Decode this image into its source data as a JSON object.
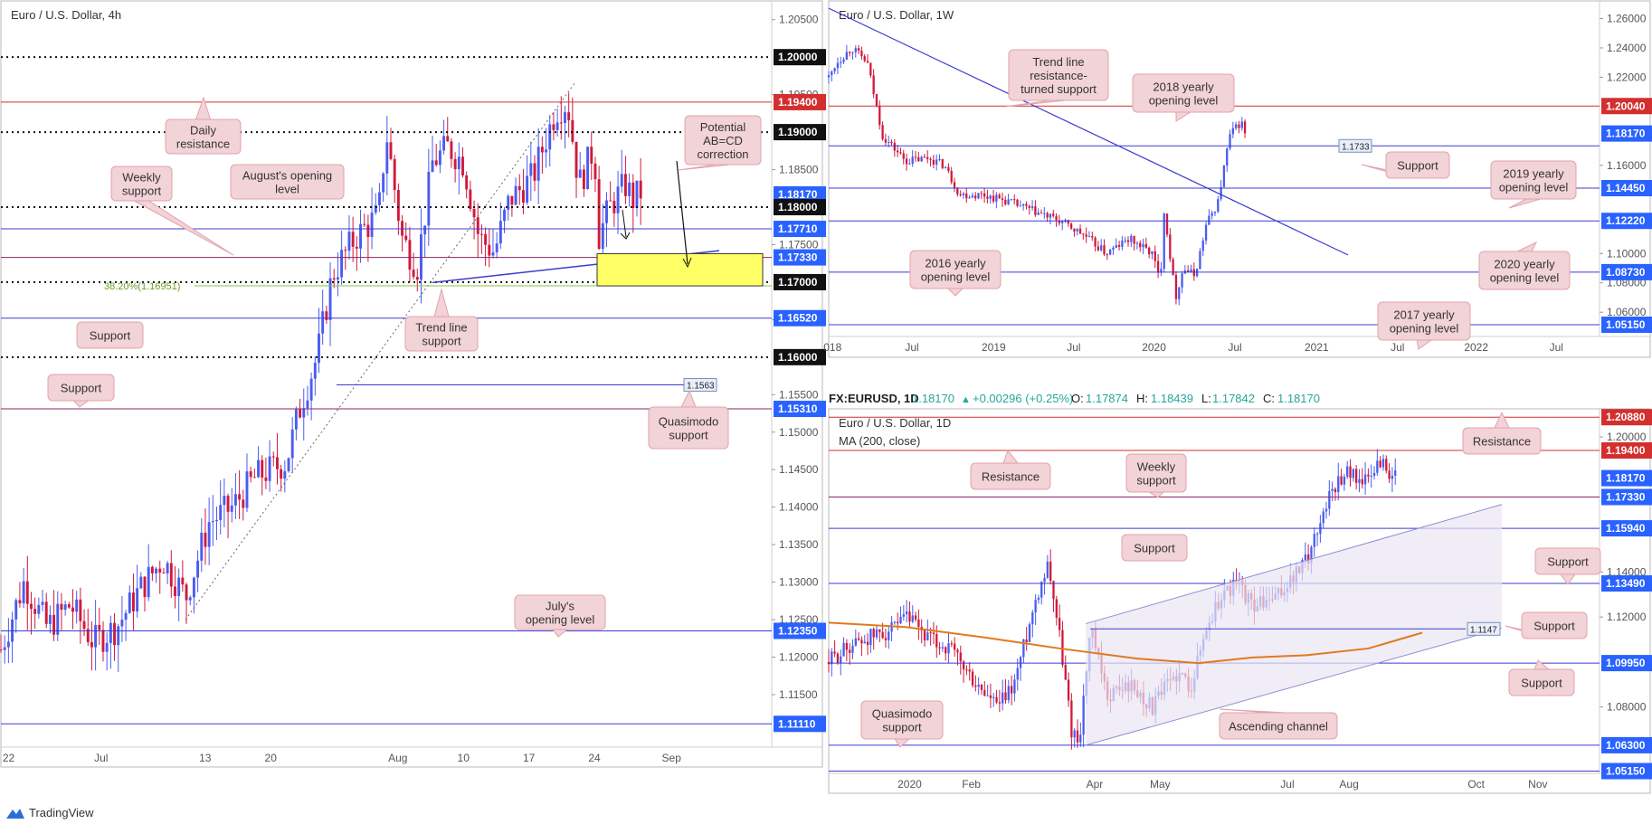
{
  "brand": "TradingView",
  "colors": {
    "up": "#4a5cf0",
    "down": "#d1193c",
    "blue_line": "#3b3bd0",
    "red_line": "#d32f2f",
    "callout_bg": "#f2d3d7",
    "callout_border": "#e2a3ab",
    "yellow": "#ffff66",
    "green": "#8bc34a",
    "ma": "#e07a1f"
  },
  "chart_data": [
    {
      "id": "h4",
      "type": "candlestick",
      "title": "Euro / U.S. Dollar, 4h",
      "ylim": [
        1.108,
        1.2075
      ],
      "y_ticks": [
        "1.20500",
        "1.19500",
        "1.18500",
        "1.17500",
        "1.16500",
        "1.15500",
        "1.15000",
        "1.14500",
        "1.14000",
        "1.13500",
        "1.13000",
        "1.12500",
        "1.12000",
        "1.11500"
      ],
      "x_ticks": [
        {
          "label": "22",
          "pos": 0.01
        },
        {
          "label": "Jul",
          "pos": 0.13
        },
        {
          "label": "13",
          "pos": 0.265
        },
        {
          "label": "20",
          "pos": 0.35
        },
        {
          "label": "Aug",
          "pos": 0.515
        },
        {
          "label": "10",
          "pos": 0.6
        },
        {
          "label": "17",
          "pos": 0.685
        },
        {
          "label": "24",
          "pos": 0.77
        },
        {
          "label": "Sep",
          "pos": 0.87
        }
      ],
      "levels": [
        {
          "value": 1.2,
          "label": "1.20000",
          "style": "dotted",
          "tag": "black"
        },
        {
          "value": 1.194,
          "label": "1.19400",
          "style": "red",
          "tag": "red"
        },
        {
          "value": 1.19,
          "label": "1.19000",
          "style": "dotted",
          "tag": "black"
        },
        {
          "value": 1.1817,
          "label": "1.18170",
          "style": "none",
          "tag": "blue"
        },
        {
          "value": 1.18,
          "label": "1.18000",
          "style": "dotted",
          "tag": "black"
        },
        {
          "value": 1.1771,
          "label": "1.17710",
          "style": "blue",
          "tag": "blue"
        },
        {
          "value": 1.1733,
          "label": "1.17330",
          "style": "purple",
          "tag": "blue"
        },
        {
          "value": 1.17,
          "label": "1.17000",
          "style": "dotted",
          "tag": "black"
        },
        {
          "value": 1.1652,
          "label": "1.16520",
          "style": "blue",
          "tag": "blue"
        },
        {
          "value": 1.16,
          "label": "1.16000",
          "style": "dotted",
          "tag": "black"
        },
        {
          "value": 1.1531,
          "label": "1.15310",
          "style": "purple",
          "tag": "blue"
        },
        {
          "value": 1.1235,
          "label": "1.12350",
          "style": "blue",
          "tag": "blue"
        },
        {
          "value": 1.1111,
          "label": "1.11110",
          "style": "blue",
          "tag": "blue"
        }
      ],
      "fib_label": "38.20%(1.16951)",
      "fib_value": 1.16951,
      "quasimodo_value": 1.1563,
      "quasimodo_label": "1.1563",
      "path": [
        [
          0.0,
          1.121
        ],
        [
          0.03,
          1.13
        ],
        [
          0.06,
          1.124
        ],
        [
          0.09,
          1.127
        ],
        [
          0.12,
          1.122
        ],
        [
          0.15,
          1.124
        ],
        [
          0.18,
          1.129
        ],
        [
          0.21,
          1.133
        ],
        [
          0.24,
          1.128
        ],
        [
          0.27,
          1.138
        ],
        [
          0.3,
          1.14
        ],
        [
          0.33,
          1.144
        ],
        [
          0.37,
          1.146
        ],
        [
          0.39,
          1.154
        ],
        [
          0.41,
          1.16
        ],
        [
          0.43,
          1.171
        ],
        [
          0.46,
          1.176
        ],
        [
          0.49,
          1.179
        ],
        [
          0.5,
          1.19
        ],
        [
          0.52,
          1.176
        ],
        [
          0.54,
          1.172
        ],
        [
          0.56,
          1.186
        ],
        [
          0.58,
          1.188
        ],
        [
          0.6,
          1.186
        ],
        [
          0.62,
          1.176
        ],
        [
          0.64,
          1.174
        ],
        [
          0.66,
          1.181
        ],
        [
          0.69,
          1.184
        ],
        [
          0.72,
          1.193
        ],
        [
          0.735,
          1.194
        ],
        [
          0.75,
          1.183
        ],
        [
          0.77,
          1.188
        ],
        [
          0.775,
          1.176
        ],
        [
          0.79,
          1.18
        ],
        [
          0.81,
          1.183
        ],
        [
          0.82,
          1.181
        ],
        [
          0.83,
          1.182
        ]
      ],
      "callouts": [
        {
          "name": "daily-resistance",
          "text": [
            "Daily",
            "resistance"
          ]
        },
        {
          "name": "weekly-support",
          "text": [
            "Weekly",
            "support"
          ]
        },
        {
          "name": "augusts-opening-level",
          "text": [
            "August's opening",
            "level"
          ]
        },
        {
          "name": "potential-abcd",
          "text": [
            "Potential",
            "AB=CD",
            "correction"
          ]
        },
        {
          "name": "trend-line-support",
          "text": [
            "Trend line",
            "support"
          ]
        },
        {
          "name": "support-1",
          "text": [
            "Support"
          ]
        },
        {
          "name": "support-2",
          "text": [
            "Support"
          ]
        },
        {
          "name": "quasimodo-support",
          "text": [
            "Quasimodo",
            "support"
          ]
        },
        {
          "name": "julys-opening-level",
          "text": [
            "July's",
            "opening level"
          ]
        }
      ]
    },
    {
      "id": "w1",
      "type": "candlestick",
      "title": "Euro / U.S. Dollar, 1W",
      "ylim": [
        1.0435,
        1.272
      ],
      "y_ticks": [
        "1.26000",
        "1.24000",
        "1.22000",
        "1.16000",
        "1.10000",
        "1.08000",
        "1.06000"
      ],
      "x_ticks": [
        {
          "label": "018",
          "pos": 0.005
        },
        {
          "label": "Jul",
          "pos": 0.108
        },
        {
          "label": "2019",
          "pos": 0.214
        },
        {
          "label": "Jul",
          "pos": 0.318
        },
        {
          "label": "2020",
          "pos": 0.422
        },
        {
          "label": "Jul",
          "pos": 0.527
        },
        {
          "label": "2021",
          "pos": 0.633
        },
        {
          "label": "Jul",
          "pos": 0.738
        },
        {
          "label": "2022",
          "pos": 0.84
        },
        {
          "label": "Jul",
          "pos": 0.944
        }
      ],
      "levels": [
        {
          "value": 1.2004,
          "label": "1.20040",
          "style": "red",
          "tag": "red"
        },
        {
          "value": 1.1817,
          "label": "1.18170",
          "style": "none",
          "tag": "blue"
        },
        {
          "value": 1.1733,
          "label": "1.17330",
          "style": "blue",
          "tag": "none"
        },
        {
          "value": 1.1445,
          "label": "1.14450",
          "style": "blue",
          "tag": "blue"
        },
        {
          "value": 1.1222,
          "label": "1.12220",
          "style": "blue",
          "tag": "blue"
        },
        {
          "value": 1.0873,
          "label": "1.08730",
          "style": "blue",
          "tag": "blue"
        },
        {
          "value": 1.0515,
          "label": "1.05150",
          "style": "blue",
          "tag": "blue"
        }
      ],
      "support_tag": "1.1733",
      "path": [
        [
          0.0,
          1.22
        ],
        [
          0.01,
          1.23
        ],
        [
          0.03,
          1.24
        ],
        [
          0.05,
          1.23
        ],
        [
          0.07,
          1.18
        ],
        [
          0.1,
          1.163
        ],
        [
          0.13,
          1.165
        ],
        [
          0.15,
          1.16
        ],
        [
          0.17,
          1.14
        ],
        [
          0.2,
          1.14
        ],
        [
          0.23,
          1.136
        ],
        [
          0.26,
          1.13
        ],
        [
          0.3,
          1.122
        ],
        [
          0.33,
          1.113
        ],
        [
          0.36,
          1.1
        ],
        [
          0.39,
          1.11
        ],
        [
          0.42,
          1.1
        ],
        [
          0.43,
          1.08
        ],
        [
          0.435,
          1.13
        ],
        [
          0.45,
          1.07
        ],
        [
          0.46,
          1.09
        ],
        [
          0.475,
          1.085
        ],
        [
          0.49,
          1.12
        ],
        [
          0.505,
          1.135
        ],
        [
          0.52,
          1.18
        ],
        [
          0.535,
          1.19
        ],
        [
          0.54,
          1.1817
        ]
      ],
      "callouts": [
        {
          "name": "trend-line-resistance-turned-support",
          "text": [
            "Trend line",
            "resistance-",
            "turned support"
          ]
        },
        {
          "name": "2018-yearly-opening-level",
          "text": [
            "2018 yearly",
            "opening level"
          ]
        },
        {
          "name": "weekly-support-label",
          "text": [
            "Support"
          ]
        },
        {
          "name": "2019-yearly-opening-level",
          "text": [
            "2019 yearly",
            "opening level"
          ]
        },
        {
          "name": "2016-yearly-opening-level",
          "text": [
            "2016 yearly",
            "opening level"
          ]
        },
        {
          "name": "2020-yearly-opening-level",
          "text": [
            "2020 yearly",
            "opening level"
          ]
        },
        {
          "name": "2017-yearly-opening-level",
          "text": [
            "2017 yearly",
            "opening level"
          ]
        }
      ]
    },
    {
      "id": "d1",
      "type": "candlestick",
      "title": "Euro / U.S. Dollar, 1D",
      "indicator": "MA (200, close)",
      "symbol_header": {
        "symbol": "FX:EURUSD, 1D",
        "last": "1.18170",
        "change": "+0.00296 (+0.25%)",
        "o_label": "O:",
        "o": "1.17874",
        "h_label": "H:",
        "h": "1.18439",
        "l_label": "L:",
        "l": "1.17842",
        "c_label": "C:",
        "c": "1.18170"
      },
      "ylim": [
        1.0505,
        1.2125
      ],
      "y_ticks": [
        "1.20000",
        "1.14000",
        "1.12000",
        "1.08000"
      ],
      "x_ticks": [
        {
          "label": "2020",
          "pos": 0.105
        },
        {
          "label": "Feb",
          "pos": 0.185
        },
        {
          "label": "Apr",
          "pos": 0.345
        },
        {
          "label": "May",
          "pos": 0.43
        },
        {
          "label": "Jul",
          "pos": 0.595
        },
        {
          "label": "Aug",
          "pos": 0.675
        },
        {
          "label": "Oct",
          "pos": 0.84
        },
        {
          "label": "Nov",
          "pos": 0.92
        }
      ],
      "levels": [
        {
          "value": 1.2088,
          "label": "1.20880",
          "style": "red",
          "tag": "red"
        },
        {
          "value": 1.194,
          "label": "1.19400",
          "style": "red",
          "tag": "red"
        },
        {
          "value": 1.1817,
          "label": "1.18170",
          "style": "none",
          "tag": "blue"
        },
        {
          "value": 1.1733,
          "label": "1.17330",
          "style": "purple",
          "tag": "blue"
        },
        {
          "value": 1.1594,
          "label": "1.15940",
          "style": "blue",
          "tag": "blue"
        },
        {
          "value": 1.1349,
          "label": "1.13490",
          "style": "blue",
          "tag": "blue"
        },
        {
          "value": 1.0995,
          "label": "1.09950",
          "style": "blue",
          "tag": "blue"
        },
        {
          "value": 1.063,
          "label": "1.06300",
          "style": "blue",
          "tag": "blue"
        },
        {
          "value": 1.0515,
          "label": "1.05150",
          "style": "blue",
          "tag": "blue"
        }
      ],
      "support_tag": "1.1147",
      "support_value": 1.1147,
      "path": [
        [
          0.0,
          1.1
        ],
        [
          0.03,
          1.108
        ],
        [
          0.06,
          1.112
        ],
        [
          0.09,
          1.115
        ],
        [
          0.1,
          1.12
        ],
        [
          0.13,
          1.11
        ],
        [
          0.16,
          1.105
        ],
        [
          0.19,
          1.09
        ],
        [
          0.22,
          1.08
        ],
        [
          0.24,
          1.09
        ],
        [
          0.27,
          1.13
        ],
        [
          0.285,
          1.145
        ],
        [
          0.3,
          1.11
        ],
        [
          0.315,
          1.07
        ],
        [
          0.325,
          1.065
        ],
        [
          0.34,
          1.115
        ],
        [
          0.36,
          1.085
        ],
        [
          0.39,
          1.09
        ],
        [
          0.42,
          1.08
        ],
        [
          0.45,
          1.095
        ],
        [
          0.47,
          1.09
        ],
        [
          0.49,
          1.115
        ],
        [
          0.51,
          1.13
        ],
        [
          0.53,
          1.135
        ],
        [
          0.55,
          1.125
        ],
        [
          0.58,
          1.128
        ],
        [
          0.62,
          1.145
        ],
        [
          0.65,
          1.175
        ],
        [
          0.67,
          1.185
        ],
        [
          0.7,
          1.18
        ],
        [
          0.715,
          1.19
        ],
        [
          0.73,
          1.183
        ],
        [
          0.735,
          1.1817
        ]
      ],
      "ma_path": [
        [
          0.0,
          1.1175
        ],
        [
          0.1,
          1.1155
        ],
        [
          0.2,
          1.111
        ],
        [
          0.3,
          1.106
        ],
        [
          0.4,
          1.1015
        ],
        [
          0.48,
          1.0995
        ],
        [
          0.55,
          1.102
        ],
        [
          0.62,
          1.103
        ],
        [
          0.7,
          1.106
        ],
        [
          0.77,
          1.113
        ]
      ],
      "callouts": [
        {
          "name": "resistance-left",
          "text": [
            "Resistance"
          ]
        },
        {
          "name": "weekly-support-d1",
          "text": [
            "Weekly",
            "support"
          ]
        },
        {
          "name": "resistance-right",
          "text": [
            "Resistance"
          ]
        },
        {
          "name": "support-d1-mid",
          "text": [
            "Support"
          ]
        },
        {
          "name": "support-d1-right-1",
          "text": [
            "Support"
          ]
        },
        {
          "name": "support-d1-right-2",
          "text": [
            "Support"
          ]
        },
        {
          "name": "support-d1-right-3",
          "text": [
            "Support"
          ]
        },
        {
          "name": "quasimodo-support-d1",
          "text": [
            "Quasimodo",
            "support"
          ]
        },
        {
          "name": "ascending-channel",
          "text": [
            "Ascending channel"
          ]
        }
      ]
    }
  ]
}
